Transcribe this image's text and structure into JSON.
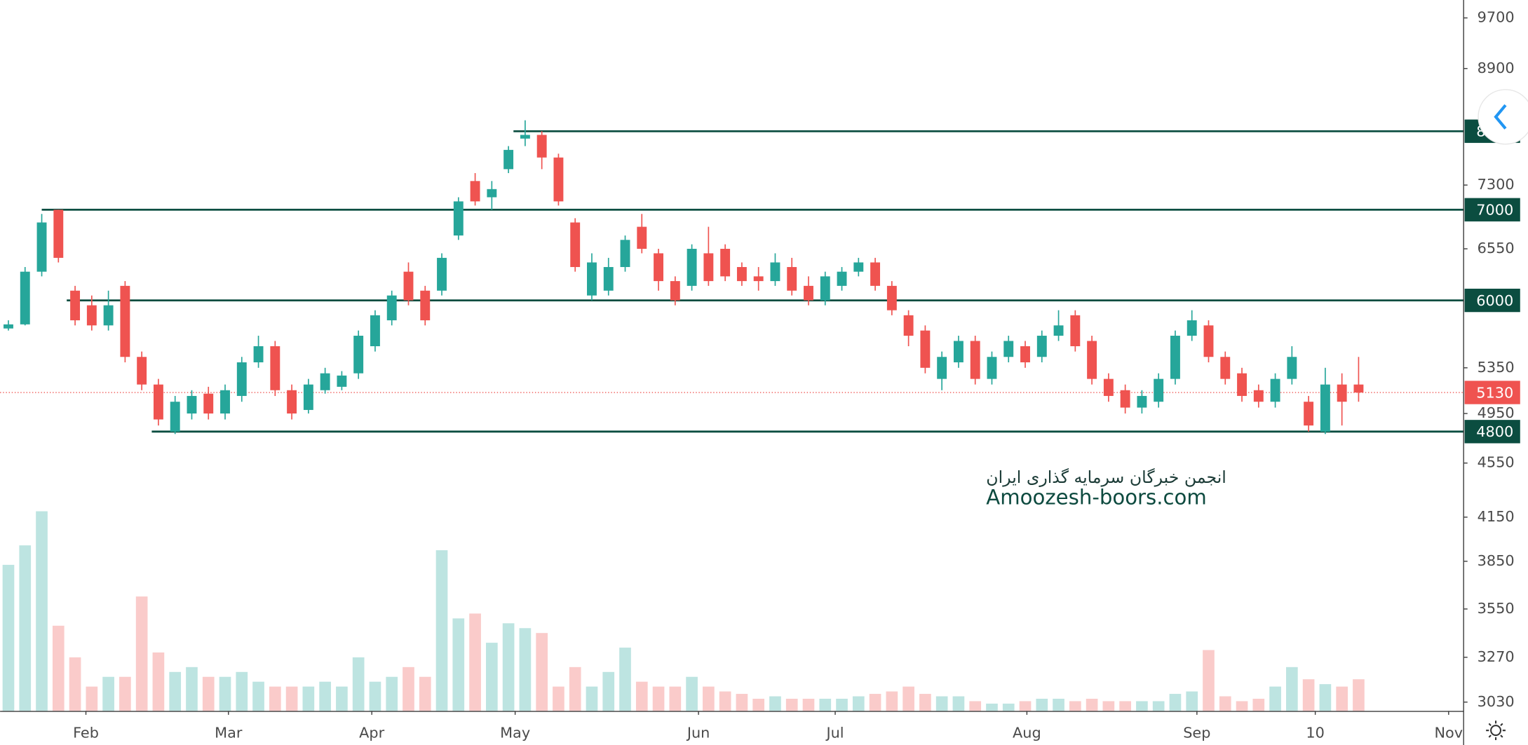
{
  "chart_data": {
    "type": "candlestick",
    "log_scale": true,
    "up_color": "#26a69a",
    "down_color": "#ef5350",
    "level_color": "#0b4d40",
    "xlim": [
      -0.5,
      87.3
    ],
    "xticks": [
      {
        "value": 4.65,
        "label": "Feb"
      },
      {
        "value": 13.2,
        "label": "Mar"
      },
      {
        "value": 21.8,
        "label": "Apr"
      },
      {
        "value": 30.4,
        "label": "May"
      },
      {
        "value": 41.4,
        "label": "Jun"
      },
      {
        "value": 49.6,
        "label": "Jul"
      },
      {
        "value": 61.1,
        "label": "Aug"
      },
      {
        "value": 71.3,
        "label": "Sep"
      },
      {
        "value": 78.4,
        "label": "10"
      },
      {
        "value": 86.4,
        "label": "Nov"
      }
    ],
    "ylim": [
      2985,
      10000
    ],
    "yticks": [
      9700,
      8900,
      7300,
      6550,
      5350,
      4950,
      4550,
      4150,
      3850,
      3550,
      3270,
      3030
    ],
    "vlim": [
      0,
      100
    ],
    "candles": [
      [
        5720,
        5800,
        5700,
        5760
      ],
      [
        5760,
        6350,
        5750,
        6300
      ],
      [
        6300,
        6950,
        6250,
        6850
      ],
      [
        7000,
        7000,
        6400,
        6450
      ],
      [
        6100,
        6150,
        5750,
        5800
      ],
      [
        5950,
        6050,
        5700,
        5750
      ],
      [
        5750,
        6100,
        5700,
        5950
      ],
      [
        6150,
        6200,
        5400,
        5450
      ],
      [
        5450,
        5500,
        5150,
        5200
      ],
      [
        5200,
        5250,
        4850,
        4900
      ],
      [
        4800,
        5100,
        4780,
        5050
      ],
      [
        4950,
        5150,
        4900,
        5100
      ],
      [
        5120,
        5180,
        4900,
        4950
      ],
      [
        4950,
        5200,
        4900,
        5150
      ],
      [
        5100,
        5450,
        5050,
        5400
      ],
      [
        5400,
        5650,
        5350,
        5550
      ],
      [
        5550,
        5600,
        5100,
        5150
      ],
      [
        5150,
        5200,
        4900,
        4950
      ],
      [
        4980,
        5250,
        4950,
        5200
      ],
      [
        5150,
        5350,
        5120,
        5300
      ],
      [
        5180,
        5320,
        5150,
        5280
      ],
      [
        5300,
        5700,
        5250,
        5650
      ],
      [
        5550,
        5900,
        5500,
        5850
      ],
      [
        5800,
        6100,
        5750,
        6050
      ],
      [
        6300,
        6400,
        5950,
        6000
      ],
      [
        6100,
        6150,
        5750,
        5800
      ],
      [
        6100,
        6500,
        6050,
        6450
      ],
      [
        6700,
        7150,
        6650,
        7100
      ],
      [
        7350,
        7450,
        7050,
        7100
      ],
      [
        7150,
        7350,
        7000,
        7250
      ],
      [
        7500,
        7800,
        7450,
        7750
      ],
      [
        7900,
        8150,
        7800,
        7950
      ],
      [
        7950,
        8000,
        7500,
        7650
      ],
      [
        7650,
        7700,
        7050,
        7100
      ],
      [
        6850,
        6900,
        6300,
        6350
      ],
      [
        6050,
        6500,
        6000,
        6400
      ],
      [
        6100,
        6450,
        6050,
        6350
      ],
      [
        6350,
        6700,
        6300,
        6650
      ],
      [
        6800,
        6950,
        6500,
        6550
      ],
      [
        6500,
        6550,
        6100,
        6200
      ],
      [
        6200,
        6250,
        5950,
        6000
      ],
      [
        6150,
        6600,
        6100,
        6550
      ],
      [
        6500,
        6800,
        6150,
        6200
      ],
      [
        6550,
        6600,
        6200,
        6250
      ],
      [
        6350,
        6400,
        6150,
        6200
      ],
      [
        6250,
        6350,
        6100,
        6200
      ],
      [
        6200,
        6500,
        6150,
        6400
      ],
      [
        6350,
        6450,
        6050,
        6100
      ],
      [
        6150,
        6250,
        5950,
        6000
      ],
      [
        6000,
        6300,
        5950,
        6250
      ],
      [
        6150,
        6350,
        6100,
        6300
      ],
      [
        6300,
        6450,
        6250,
        6400
      ],
      [
        6400,
        6450,
        6100,
        6150
      ],
      [
        6150,
        6200,
        5850,
        5900
      ],
      [
        5850,
        5900,
        5550,
        5650
      ],
      [
        5700,
        5750,
        5300,
        5350
      ],
      [
        5250,
        5500,
        5150,
        5450
      ],
      [
        5400,
        5650,
        5350,
        5600
      ],
      [
        5600,
        5650,
        5200,
        5250
      ],
      [
        5250,
        5500,
        5200,
        5450
      ],
      [
        5450,
        5650,
        5400,
        5600
      ],
      [
        5550,
        5600,
        5350,
        5400
      ],
      [
        5450,
        5700,
        5400,
        5650
      ],
      [
        5650,
        5900,
        5600,
        5750
      ],
      [
        5850,
        5900,
        5500,
        5550
      ],
      [
        5600,
        5650,
        5200,
        5250
      ],
      [
        5250,
        5300,
        5050,
        5100
      ],
      [
        5150,
        5200,
        4950,
        5000
      ],
      [
        5000,
        5150,
        4950,
        5100
      ],
      [
        5050,
        5300,
        5000,
        5250
      ],
      [
        5250,
        5700,
        5200,
        5650
      ],
      [
        5650,
        5900,
        5600,
        5800
      ],
      [
        5750,
        5800,
        5400,
        5450
      ],
      [
        5450,
        5500,
        5200,
        5250
      ],
      [
        5300,
        5350,
        5050,
        5100
      ],
      [
        5150,
        5200,
        5000,
        5050
      ],
      [
        5050,
        5300,
        5000,
        5250
      ],
      [
        5250,
        5550,
        5200,
        5450
      ],
      [
        5050,
        5100,
        4800,
        4850
      ],
      [
        4800,
        5350,
        4780,
        5200
      ],
      [
        5200,
        5300,
        4850,
        5050
      ],
      [
        5200,
        5450,
        5050,
        5130
      ]
    ],
    "volume": [
      60,
      68,
      82,
      35,
      22,
      10,
      14,
      14,
      47,
      24,
      16,
      18,
      14,
      14,
      16,
      12,
      10,
      10,
      10,
      12,
      10,
      22,
      12,
      14,
      18,
      14,
      66,
      38,
      40,
      28,
      36,
      34,
      32,
      10,
      18,
      10,
      16,
      26,
      12,
      10,
      10,
      14,
      10,
      8,
      7,
      5,
      6,
      5,
      5,
      5,
      5,
      6,
      7,
      8,
      10,
      7,
      6,
      6,
      4,
      3,
      3,
      4,
      5,
      5,
      4,
      5,
      4,
      4,
      4,
      4,
      7,
      8,
      25,
      6,
      4,
      5,
      10,
      18,
      13,
      11,
      10,
      13
    ],
    "levels": [
      {
        "value": 8000,
        "start": 30.3
      },
      {
        "value": 7000,
        "start": 2.0
      },
      {
        "value": 6000,
        "start": 3.5
      },
      {
        "value": 4800,
        "start": 8.6
      }
    ],
    "last_price": 5130,
    "watermark": [
      "انجمن خبرگان سرمایه گذاری ایران",
      "Amoozesh-boors.com"
    ]
  }
}
